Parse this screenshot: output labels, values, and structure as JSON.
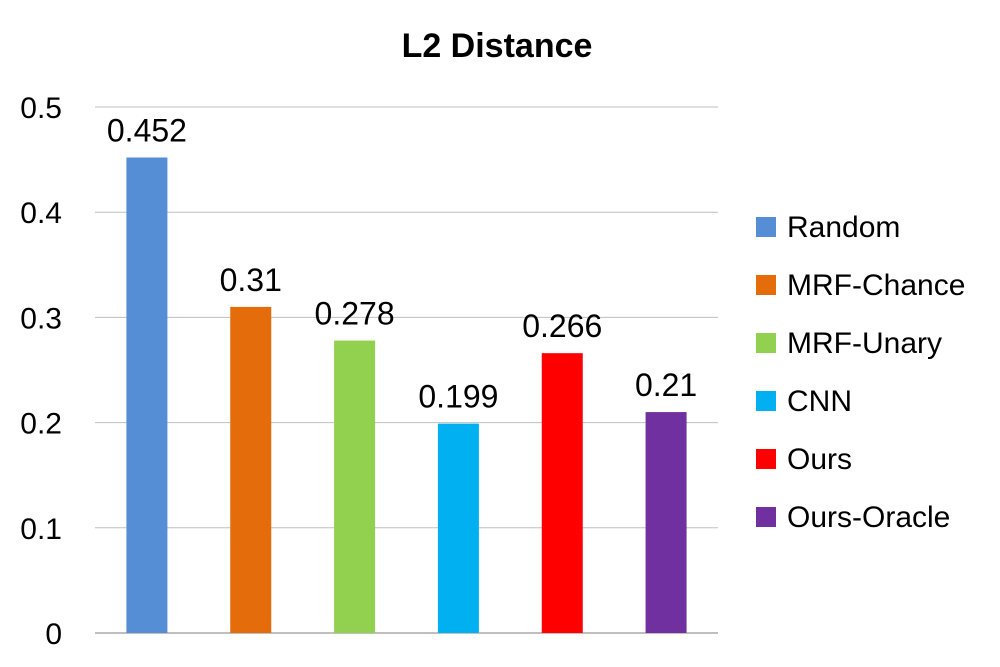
{
  "chart_data": {
    "type": "bar",
    "title": "L2 Distance",
    "xlabel": "",
    "ylabel": "",
    "ylim": [
      0,
      0.5
    ],
    "yticks": [
      0,
      0.1,
      0.2,
      0.3,
      0.4,
      0.5
    ],
    "ytick_labels": [
      "0",
      "0.1",
      "0.2",
      "0.3",
      "0.4",
      "0.5"
    ],
    "grid": true,
    "legend_position": "right",
    "series": [
      {
        "name": "Random",
        "value": 0.452,
        "label": "0.452",
        "color": "#558ED5"
      },
      {
        "name": "MRF-Chance",
        "value": 0.31,
        "label": "0.31",
        "color": "#E46C0A"
      },
      {
        "name": "MRF-Unary",
        "value": 0.278,
        "label": "0.278",
        "color": "#92D050"
      },
      {
        "name": "CNN",
        "value": 0.199,
        "label": "0.199",
        "color": "#00B0F0"
      },
      {
        "name": "Ours",
        "value": 0.266,
        "label": "0.266",
        "color": "#FF0000"
      },
      {
        "name": "Ours-Oracle",
        "value": 0.21,
        "label": "0.21",
        "color": "#7030A0"
      }
    ]
  }
}
